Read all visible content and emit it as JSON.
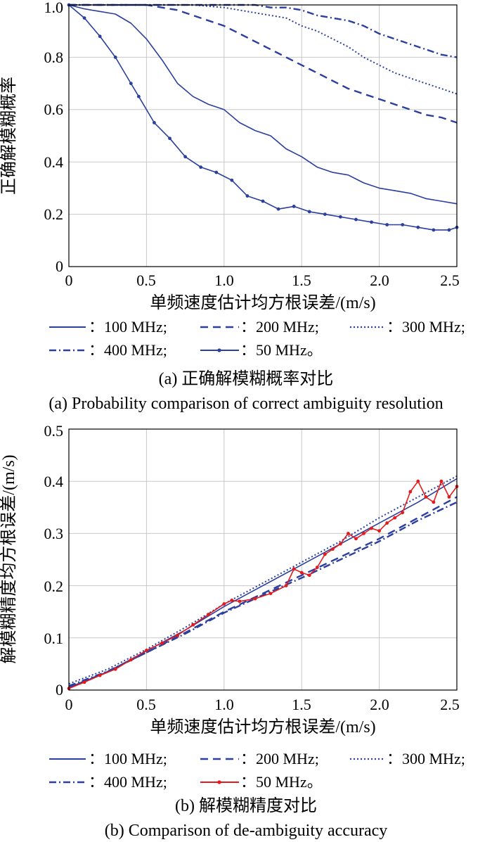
{
  "chart_data": [
    {
      "type": "line",
      "panel": "a",
      "ylabel": "正确解模糊概率",
      "xlabel": "单频速度估计均方根误差/(m/s)",
      "xlim": [
        0,
        2.5
      ],
      "ylim": [
        0,
        1.0
      ],
      "xticks": [
        "0",
        "0.5",
        "1.0",
        "1.5",
        "2.0",
        "2.5"
      ],
      "yticks": [
        "0",
        "0.2",
        "0.4",
        "0.6",
        "0.8",
        "1.0"
      ],
      "grid": true,
      "legend": [
        "：100 MHz;",
        "：200 MHz;",
        "：300 MHz;",
        "：400 MHz;",
        "：50 MHz。"
      ],
      "caption_cn": "(a) 正确解模糊概率对比",
      "caption_en": "(a) Probability comparison of correct ambiguity resolution",
      "series": [
        {
          "name": "100 MHz",
          "style": "solid",
          "color": "#2b3f9e",
          "x": [
            0,
            0.1,
            0.2,
            0.3,
            0.4,
            0.5,
            0.6,
            0.7,
            0.8,
            0.9,
            1.0,
            1.1,
            1.2,
            1.3,
            1.4,
            1.5,
            1.6,
            1.7,
            1.8,
            1.9,
            2.0,
            2.1,
            2.2,
            2.3,
            2.4,
            2.5
          ],
          "values": [
            1.0,
            0.985,
            0.975,
            0.965,
            0.93,
            0.87,
            0.79,
            0.7,
            0.65,
            0.62,
            0.6,
            0.55,
            0.52,
            0.5,
            0.45,
            0.42,
            0.38,
            0.36,
            0.35,
            0.32,
            0.3,
            0.29,
            0.28,
            0.26,
            0.25,
            0.24
          ]
        },
        {
          "name": "200 MHz",
          "style": "dashed",
          "color": "#2b3f9e",
          "x": [
            0,
            0.1,
            0.2,
            0.3,
            0.4,
            0.5,
            0.6,
            0.7,
            0.8,
            0.9,
            1.0,
            1.1,
            1.2,
            1.3,
            1.4,
            1.5,
            1.6,
            1.7,
            1.8,
            1.9,
            2.0,
            2.1,
            2.2,
            2.3,
            2.4,
            2.5
          ],
          "values": [
            1.0,
            1.0,
            1.0,
            1.0,
            1.0,
            1.0,
            0.99,
            0.98,
            0.96,
            0.94,
            0.92,
            0.89,
            0.86,
            0.83,
            0.8,
            0.77,
            0.74,
            0.71,
            0.68,
            0.66,
            0.64,
            0.62,
            0.6,
            0.58,
            0.57,
            0.55
          ]
        },
        {
          "name": "300 MHz",
          "style": "dotted",
          "color": "#2b3f9e",
          "x": [
            0,
            0.2,
            0.4,
            0.6,
            0.8,
            1.0,
            1.1,
            1.2,
            1.3,
            1.4,
            1.5,
            1.6,
            1.7,
            1.8,
            1.9,
            2.0,
            2.1,
            2.2,
            2.3,
            2.4,
            2.5
          ],
          "values": [
            1.0,
            1.0,
            1.0,
            1.0,
            1.0,
            0.99,
            0.98,
            0.97,
            0.96,
            0.95,
            0.92,
            0.9,
            0.87,
            0.84,
            0.8,
            0.77,
            0.74,
            0.72,
            0.7,
            0.68,
            0.66
          ]
        },
        {
          "name": "400 MHz",
          "style": "dashdot",
          "color": "#2b3f9e",
          "x": [
            0,
            0.2,
            0.4,
            0.6,
            0.8,
            1.0,
            1.1,
            1.2,
            1.3,
            1.4,
            1.5,
            1.6,
            1.7,
            1.8,
            1.9,
            2.0,
            2.1,
            2.2,
            2.3,
            2.4,
            2.5
          ],
          "values": [
            1.0,
            1.0,
            1.0,
            1.0,
            1.0,
            1.0,
            1.0,
            1.0,
            0.99,
            0.99,
            0.98,
            0.96,
            0.95,
            0.94,
            0.92,
            0.89,
            0.87,
            0.85,
            0.83,
            0.81,
            0.8
          ]
        },
        {
          "name": "50 MHz",
          "style": "marker",
          "color": "#2b3f9e",
          "x": [
            0,
            0.1,
            0.2,
            0.3,
            0.4,
            0.45,
            0.55,
            0.65,
            0.75,
            0.85,
            0.95,
            1.05,
            1.15,
            1.25,
            1.35,
            1.45,
            1.55,
            1.65,
            1.75,
            1.85,
            1.95,
            2.05,
            2.15,
            2.25,
            2.35,
            2.45,
            2.5
          ],
          "values": [
            1.0,
            0.95,
            0.88,
            0.8,
            0.7,
            0.65,
            0.55,
            0.49,
            0.42,
            0.38,
            0.36,
            0.33,
            0.27,
            0.25,
            0.22,
            0.23,
            0.21,
            0.2,
            0.19,
            0.18,
            0.17,
            0.16,
            0.16,
            0.15,
            0.14,
            0.14,
            0.15
          ]
        }
      ]
    },
    {
      "type": "line",
      "panel": "b",
      "ylabel": "解模糊精度均方根误差/(m/s)",
      "xlabel": "单频速度估计均方根误差/(m/s)",
      "xlim": [
        0,
        2.5
      ],
      "ylim": [
        0,
        0.5
      ],
      "xticks": [
        "0",
        "0.5",
        "1.0",
        "1.5",
        "2.0",
        "2.5"
      ],
      "yticks": [
        "0",
        "0.1",
        "0.2",
        "0.3",
        "0.4",
        "0.5"
      ],
      "grid": true,
      "legend": [
        "：100 MHz;",
        "：200 MHz;",
        "：300 MHz;",
        "：400 MHz;",
        "：50 MHz。"
      ],
      "caption_cn": "(b) 解模糊精度对比",
      "caption_en": "(b) Comparison of de-ambiguity accuracy",
      "series": [
        {
          "name": "100 MHz",
          "style": "solid",
          "color": "#2b3f9e",
          "x": [
            0,
            0.25,
            0.5,
            0.75,
            1.0,
            1.25,
            1.5,
            1.75,
            2.0,
            2.25,
            2.5
          ],
          "values": [
            0.005,
            0.035,
            0.075,
            0.115,
            0.16,
            0.2,
            0.24,
            0.28,
            0.32,
            0.36,
            0.405
          ]
        },
        {
          "name": "200 MHz",
          "style": "dashed",
          "color": "#2b3f9e",
          "x": [
            0,
            0.25,
            0.5,
            0.75,
            1.0,
            1.25,
            1.5,
            1.75,
            2.0,
            2.25,
            2.5
          ],
          "values": [
            0.005,
            0.035,
            0.072,
            0.11,
            0.15,
            0.185,
            0.22,
            0.255,
            0.29,
            0.33,
            0.37
          ]
        },
        {
          "name": "300 MHz",
          "style": "dotted",
          "color": "#2b3f9e",
          "x": [
            0,
            0.25,
            0.5,
            0.75,
            1.0,
            1.25,
            1.5,
            1.75,
            2.0,
            2.25,
            2.5
          ],
          "values": [
            0.012,
            0.04,
            0.078,
            0.12,
            0.165,
            0.205,
            0.245,
            0.285,
            0.33,
            0.37,
            0.41
          ]
        },
        {
          "name": "400 MHz",
          "style": "dashdot",
          "color": "#2b3f9e",
          "x": [
            0,
            0.25,
            0.5,
            0.75,
            1.0,
            1.25,
            1.5,
            1.75,
            2.0,
            2.25,
            2.5
          ],
          "values": [
            0.008,
            0.036,
            0.072,
            0.108,
            0.148,
            0.182,
            0.215,
            0.25,
            0.285,
            0.325,
            0.36
          ]
        },
        {
          "name": "50 MHz",
          "style": "marker",
          "color": "#e41a1c",
          "x": [
            0,
            0.1,
            0.2,
            0.3,
            0.4,
            0.5,
            0.6,
            0.7,
            0.8,
            0.9,
            1.0,
            1.05,
            1.1,
            1.2,
            1.3,
            1.4,
            1.45,
            1.5,
            1.55,
            1.6,
            1.65,
            1.7,
            1.75,
            1.8,
            1.85,
            1.9,
            1.95,
            2.0,
            2.05,
            2.1,
            2.15,
            2.2,
            2.25,
            2.3,
            2.35,
            2.4,
            2.45,
            2.5
          ],
          "values": [
            0.003,
            0.015,
            0.028,
            0.04,
            0.058,
            0.076,
            0.09,
            0.105,
            0.125,
            0.145,
            0.165,
            0.172,
            0.17,
            0.175,
            0.185,
            0.2,
            0.232,
            0.225,
            0.22,
            0.235,
            0.26,
            0.27,
            0.28,
            0.3,
            0.29,
            0.3,
            0.31,
            0.305,
            0.32,
            0.33,
            0.34,
            0.38,
            0.4,
            0.37,
            0.36,
            0.4,
            0.37,
            0.39
          ]
        }
      ]
    }
  ]
}
